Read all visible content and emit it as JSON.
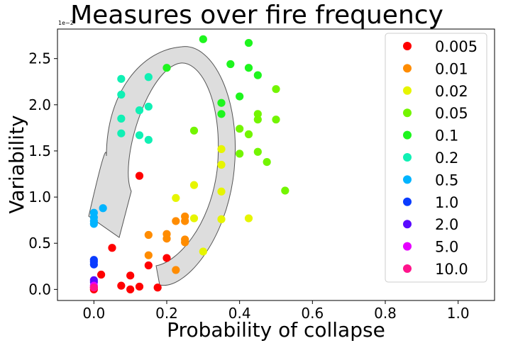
{
  "chart_data": {
    "type": "scatter",
    "title": "Measures over fire frequency",
    "xlabel": "Probability of collapse",
    "ylabel": "Variability",
    "y_offset_text": "1e−2",
    "xlim": [
      -0.1,
      1.1
    ],
    "ylim": [
      -0.12,
      2.82
    ],
    "xticks": [
      0.0,
      0.2,
      0.4,
      0.6,
      0.8,
      1.0
    ],
    "xtick_labels": [
      "0.0",
      "0.2",
      "0.4",
      "0.6",
      "0.8",
      "1.0"
    ],
    "yticks": [
      0.0,
      0.5,
      1.0,
      1.5,
      2.0,
      2.5
    ],
    "ytick_labels": [
      "0.0",
      "0.5",
      "1.0",
      "1.5",
      "2.0",
      "2.5"
    ],
    "grid": false,
    "legend_position": "top-right",
    "annotation": "curved arrow, counter-clockwise",
    "series": [
      {
        "name": "0.005",
        "color": "#ff0000",
        "points": [
          [
            0.0,
            0.0
          ],
          [
            0.0,
            0.02
          ],
          [
            0.02,
            0.16
          ],
          [
            0.05,
            0.45
          ],
          [
            0.075,
            0.04
          ],
          [
            0.1,
            0.0
          ],
          [
            0.1,
            0.15
          ],
          [
            0.125,
            0.03
          ],
          [
            0.125,
            1.23
          ],
          [
            0.15,
            0.26
          ],
          [
            0.175,
            0.02
          ],
          [
            0.2,
            0.34
          ]
        ]
      },
      {
        "name": "0.01",
        "color": "#ff8c00",
        "points": [
          [
            0.15,
            0.37
          ],
          [
            0.15,
            0.59
          ],
          [
            0.2,
            0.55
          ],
          [
            0.2,
            0.6
          ],
          [
            0.225,
            0.21
          ],
          [
            0.225,
            0.74
          ],
          [
            0.25,
            0.51
          ],
          [
            0.25,
            0.54
          ],
          [
            0.25,
            0.74
          ],
          [
            0.25,
            0.79
          ]
        ]
      },
      {
        "name": "0.02",
        "color": "#e6f500",
        "points": [
          [
            0.225,
            0.99
          ],
          [
            0.275,
            0.77
          ],
          [
            0.275,
            1.13
          ],
          [
            0.3,
            0.41
          ],
          [
            0.35,
            0.76
          ],
          [
            0.35,
            1.06
          ],
          [
            0.35,
            1.35
          ],
          [
            0.35,
            1.52
          ],
          [
            0.425,
            0.77
          ]
        ]
      },
      {
        "name": "0.05",
        "color": "#73f500",
        "points": [
          [
            0.275,
            1.72
          ],
          [
            0.4,
            1.47
          ],
          [
            0.4,
            1.74
          ],
          [
            0.425,
            1.68
          ],
          [
            0.45,
            1.49
          ],
          [
            0.45,
            1.84
          ],
          [
            0.45,
            1.9
          ],
          [
            0.475,
            1.38
          ],
          [
            0.5,
            1.84
          ],
          [
            0.5,
            2.17
          ],
          [
            0.525,
            1.07
          ]
        ]
      },
      {
        "name": "0.1",
        "color": "#1ef51e",
        "points": [
          [
            0.2,
            2.4
          ],
          [
            0.3,
            2.71
          ],
          [
            0.35,
            1.9
          ],
          [
            0.35,
            2.02
          ],
          [
            0.375,
            2.44
          ],
          [
            0.4,
            2.09
          ],
          [
            0.425,
            2.4
          ],
          [
            0.425,
            2.67
          ],
          [
            0.45,
            2.32
          ]
        ]
      },
      {
        "name": "0.2",
        "color": "#10f0b4",
        "points": [
          [
            0.075,
            1.69
          ],
          [
            0.075,
            1.85
          ],
          [
            0.075,
            2.11
          ],
          [
            0.075,
            2.28
          ],
          [
            0.125,
            1.67
          ],
          [
            0.125,
            1.94
          ],
          [
            0.15,
            1.62
          ],
          [
            0.15,
            1.98
          ],
          [
            0.15,
            2.3
          ]
        ]
      },
      {
        "name": "0.5",
        "color": "#00b4ff",
        "points": [
          [
            0.0,
            0.71
          ],
          [
            0.0,
            0.74
          ],
          [
            0.0,
            0.78
          ],
          [
            0.0,
            0.83
          ],
          [
            0.025,
            0.88
          ]
        ]
      },
      {
        "name": "1.0",
        "color": "#0a3cff",
        "points": [
          [
            0.0,
            0.27
          ],
          [
            0.0,
            0.3
          ],
          [
            0.0,
            0.32
          ]
        ]
      },
      {
        "name": "2.0",
        "color": "#5a0aff",
        "points": [
          [
            0.0,
            0.08
          ],
          [
            0.0,
            0.1
          ]
        ]
      },
      {
        "name": "5.0",
        "color": "#e600ff",
        "points": [
          [
            0.0,
            0.04
          ]
        ]
      },
      {
        "name": "10.0",
        "color": "#ff148c",
        "points": [
          [
            0.0,
            0.02
          ]
        ]
      }
    ]
  }
}
